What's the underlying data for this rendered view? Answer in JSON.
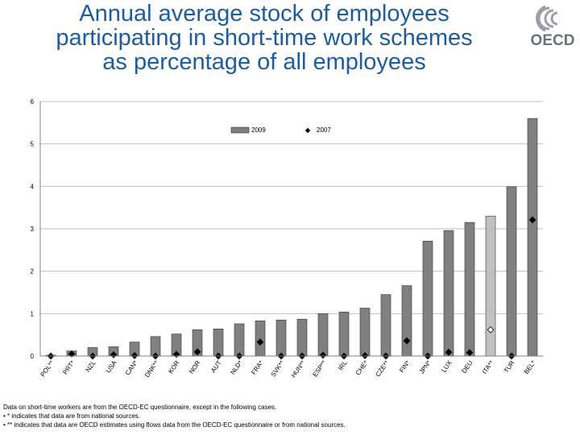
{
  "title_lines": [
    "Annual average stock of employees",
    "participating in short-time work schemes",
    "as percentage of all employees"
  ],
  "logo_text": "OECD",
  "colors": {
    "title": "#1f5c99",
    "bar": "#808080",
    "bar_highlight": "#c0c0c0",
    "marker": "#000000",
    "grid": "#c0c0c0"
  },
  "chart_data": {
    "type": "bar",
    "ylim": [
      0,
      6
    ],
    "yticks": [
      "0",
      "1",
      "2",
      "3",
      "4",
      "5",
      "6"
    ],
    "grid": true,
    "legend_position": "top-center",
    "categories": [
      "POL**",
      "PRT*",
      "NZL",
      "USA",
      "CAN*",
      "DNK**",
      "KOR",
      "NOR",
      "AUT",
      "NLD*",
      "FRA*",
      "SVK**",
      "HUN**",
      "ESP**",
      "IRL",
      "CHE*",
      "CZE**",
      "FIN*",
      "JPN*",
      "LUX",
      "DEU",
      "ITA**",
      "TUR",
      "BEL*"
    ],
    "series": [
      {
        "name": "2009",
        "style": "bar",
        "values": [
          0.02,
          0.12,
          0.2,
          0.22,
          0.33,
          0.46,
          0.52,
          0.62,
          0.64,
          0.76,
          0.83,
          0.85,
          0.87,
          1.0,
          1.04,
          1.13,
          1.45,
          1.66,
          2.71,
          2.96,
          3.15,
          3.3,
          3.99,
          5.6
        ],
        "highlight_index": 21
      },
      {
        "name": "2007",
        "style": "diamond",
        "values": [
          0.0,
          0.05,
          0.0,
          0.03,
          0.01,
          0.0,
          0.04,
          0.1,
          0.0,
          0.0,
          0.33,
          0.0,
          0.0,
          0.02,
          0.0,
          0.01,
          0.0,
          0.36,
          0.0,
          0.09,
          0.08,
          0.62,
          0.0,
          3.21
        ],
        "open_index": 21
      }
    ]
  },
  "notes": [
    "Data on short-time workers are from the OECD-EC questionnaire, except in the following cases.",
    "• * indicates that data are from national sources.",
    "• ** indicates that data are OECD estimates using flows data from the OECD-EC questionnaire or from national sources."
  ]
}
